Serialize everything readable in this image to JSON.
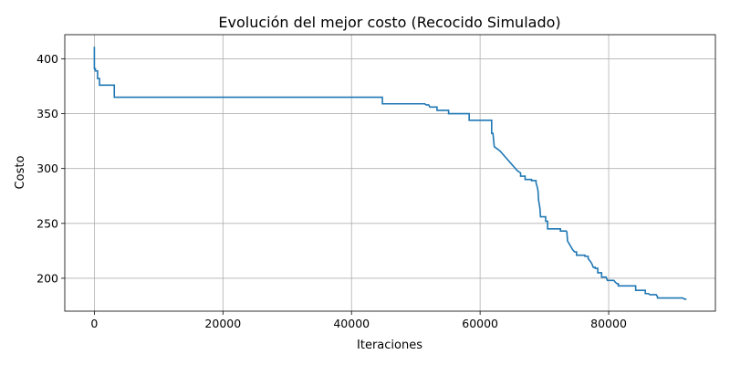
{
  "chart_data": {
    "type": "line",
    "title": "Evolución del mejor costo (Recocido Simulado)",
    "xlabel": "Iteraciones",
    "ylabel": "Costo",
    "xlim": [
      -4600,
      96600
    ],
    "ylim": [
      170,
      422
    ],
    "xticks": [
      0,
      20000,
      40000,
      60000,
      80000
    ],
    "xtick_labels": [
      "0",
      "20000",
      "40000",
      "60000",
      "80000"
    ],
    "yticks": [
      200,
      250,
      300,
      350,
      400
    ],
    "ytick_labels": [
      "200",
      "250",
      "300",
      "350",
      "400"
    ],
    "grid": true,
    "legend": "none",
    "series": [
      {
        "color": "#1f77b4",
        "x": [
          0,
          0,
          150,
          150,
          500,
          500,
          800,
          800,
          3100,
          3100,
          44800,
          44800,
          51000,
          51400,
          51600,
          52000,
          52200,
          52200,
          53300,
          53300,
          55100,
          55100,
          58300,
          58300,
          61800,
          61800,
          62000,
          62200,
          63100,
          63100,
          65800,
          65800,
          66300,
          66300,
          67000,
          67000,
          68000,
          68000,
          68700,
          68700,
          68900,
          69000,
          69100,
          69300,
          69400,
          70200,
          70200,
          70500,
          70500,
          72500,
          72500,
          73400,
          73500,
          73600,
          73900,
          74200,
          74400,
          74700,
          75000,
          75000,
          76300,
          76300,
          76800,
          76800,
          77200,
          77400,
          77600,
          77900,
          77900,
          78300,
          78300,
          78900,
          78900,
          79600,
          79800,
          80800,
          81100,
          81300,
          81500,
          81500,
          84200,
          84200,
          85700,
          85700,
          86200,
          86400,
          87400,
          87600,
          87600,
          91500,
          91800,
          92100
        ],
        "y": [
          411,
          391,
          391,
          389,
          389,
          382,
          382,
          376,
          376,
          365,
          365,
          359,
          359,
          359,
          358,
          358,
          356,
          356,
          356,
          353,
          353,
          350,
          350,
          344,
          344,
          332,
          332,
          320,
          316,
          316,
          298,
          298,
          296,
          293,
          293,
          290,
          290,
          289,
          289,
          287,
          283,
          280,
          271,
          264,
          256,
          256,
          252,
          252,
          245,
          245,
          243,
          243,
          242,
          234,
          231,
          228,
          226,
          224,
          224,
          221,
          221,
          220,
          220,
          218,
          215,
          213,
          210,
          210,
          209,
          209,
          205,
          205,
          201,
          201,
          198,
          198,
          196,
          195,
          195,
          193,
          193,
          189,
          189,
          186,
          186,
          185,
          185,
          183,
          182,
          182,
          181,
          181
        ]
      }
    ]
  }
}
